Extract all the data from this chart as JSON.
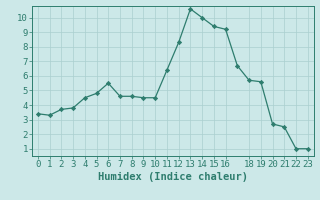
{
  "x": [
    0,
    1,
    2,
    3,
    4,
    5,
    6,
    7,
    8,
    9,
    10,
    11,
    12,
    13,
    14,
    15,
    16,
    17,
    18,
    19,
    20,
    21,
    22,
    23
  ],
  "y": [
    3.4,
    3.3,
    3.7,
    3.8,
    4.5,
    4.8,
    5.5,
    4.6,
    4.6,
    4.5,
    4.5,
    6.4,
    8.3,
    10.6,
    10.0,
    9.4,
    9.2,
    6.7,
    5.7,
    5.6,
    2.7,
    2.5,
    1.0,
    1.0
  ],
  "line_color": "#2e7d6e",
  "marker_color": "#2e7d6e",
  "bg_color": "#cce8e8",
  "grid_color": "#aacfcf",
  "xlabel": "Humidex (Indice chaleur)",
  "xlim": [
    -0.5,
    23.5
  ],
  "ylim": [
    0.5,
    10.8
  ],
  "xticks": [
    0,
    1,
    2,
    3,
    4,
    5,
    6,
    7,
    8,
    9,
    10,
    11,
    12,
    13,
    14,
    15,
    16,
    18,
    19,
    20,
    21,
    22,
    23
  ],
  "yticks": [
    1,
    2,
    3,
    4,
    5,
    6,
    7,
    8,
    9,
    10
  ],
  "tick_label_fontsize": 6.5,
  "xlabel_fontsize": 7.5
}
